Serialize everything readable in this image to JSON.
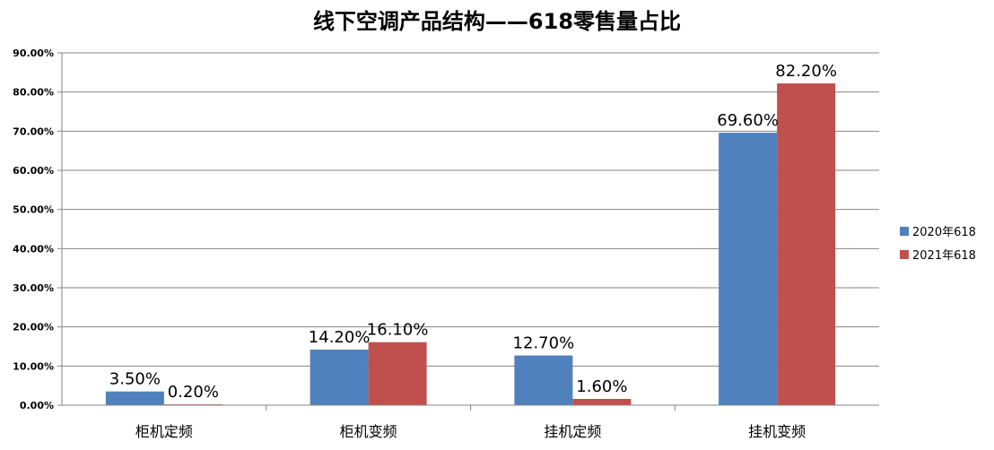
{
  "chart_data": {
    "type": "bar",
    "title": "线下空调产品结构——618零售量占比",
    "categories": [
      "柜机定频",
      "柜机变频",
      "挂机定频",
      "挂机变频"
    ],
    "series": [
      {
        "name": "2020年618",
        "color": "#4F81BD",
        "values": [
          3.5,
          14.2,
          12.7,
          69.6
        ],
        "labels": [
          "3.50%",
          "14.20%",
          "12.70%",
          "69.60%"
        ]
      },
      {
        "name": "2021年618",
        "color": "#C0504D",
        "values": [
          0.2,
          16.1,
          1.6,
          82.2
        ],
        "labels": [
          "0.20%",
          "16.10%",
          "1.60%",
          "82.20%"
        ]
      }
    ],
    "ylim": [
      0,
      90
    ],
    "yticks": [
      "0.00%",
      "10.00%",
      "20.00%",
      "30.00%",
      "40.00%",
      "50.00%",
      "60.00%",
      "70.00%",
      "80.00%",
      "90.00%"
    ],
    "grid": true,
    "legend": "right"
  }
}
